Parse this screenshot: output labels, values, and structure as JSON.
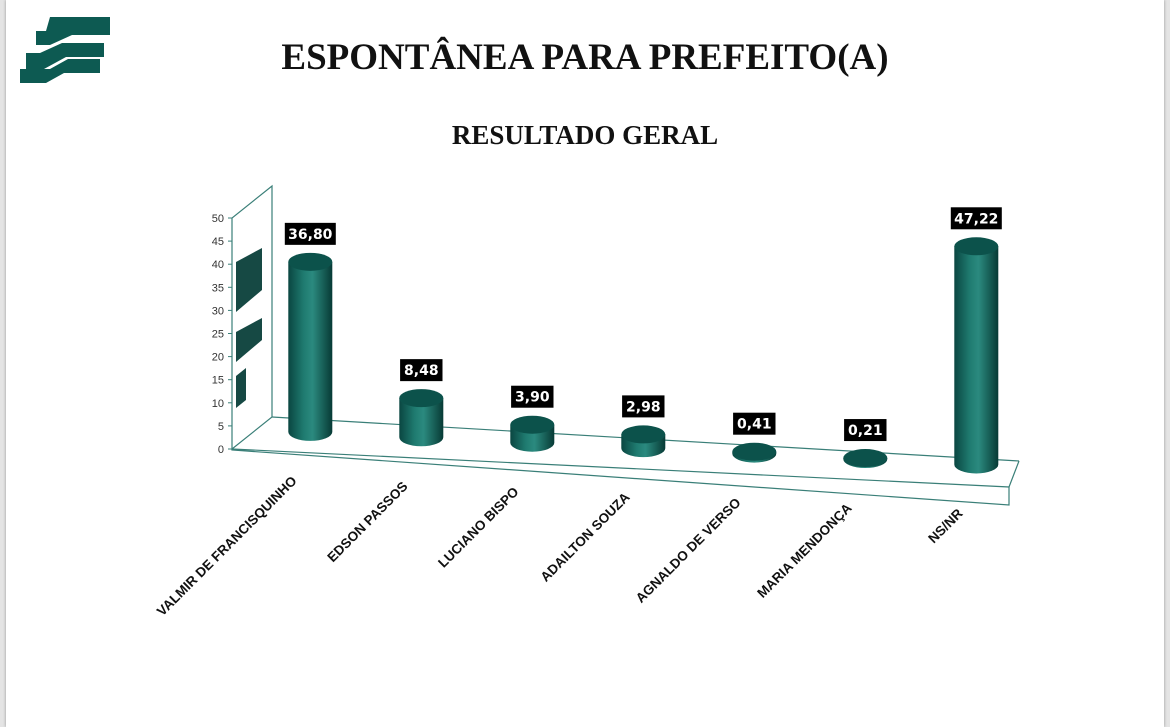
{
  "header": {
    "title": "ESPONTÂNEA PARA PREFEITO(A)",
    "subtitle": "RESULTADO GERAL",
    "logo_icon": "stripes-logo-icon"
  },
  "colors": {
    "accent": "#0d5a52",
    "bar_dark": "#093f3a",
    "bar_light": "#2d8a7e",
    "axis": "#3a7f78",
    "label_bg": "#000000"
  },
  "chart_data": {
    "type": "bar",
    "style": "3d-cylinder",
    "title": "ESPONTÂNEA PARA PREFEITO(A)",
    "subtitle": "RESULTADO GERAL",
    "categories": [
      "VALMIR DE FRANCISQUINHO",
      "EDSON PASSOS",
      "LUCIANO BISPO",
      "ADAILTON SOUZA",
      "AGNALDO DE VERSO",
      "MARIA MENDONÇA",
      "NS/NR"
    ],
    "values": [
      36.8,
      8.48,
      3.9,
      2.98,
      0.41,
      0.21,
      47.22
    ],
    "value_labels": [
      "36,80",
      "8,48",
      "3,90",
      "2,98",
      "0,41",
      "0,21",
      "47,22"
    ],
    "yticks": [
      "0",
      "5",
      "10",
      "15",
      "20",
      "25",
      "30",
      "35",
      "40",
      "45",
      "50"
    ],
    "ylim": [
      0,
      50
    ],
    "xlabel": "",
    "ylabel": "",
    "grid": false,
    "legend": "none"
  }
}
